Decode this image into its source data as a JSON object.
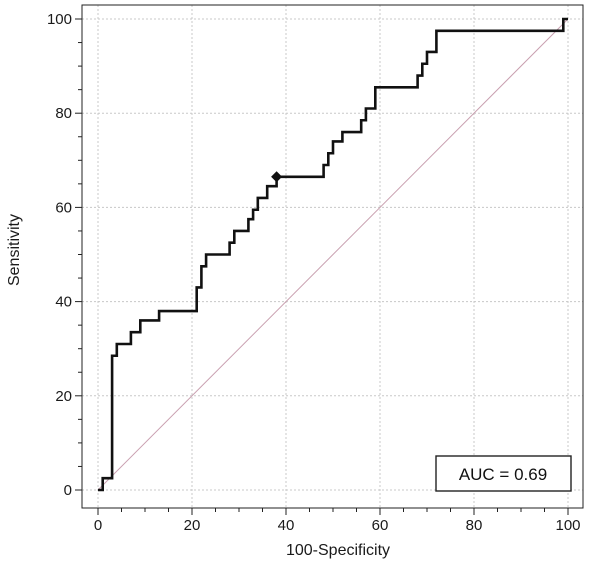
{
  "chart_data": {
    "type": "line",
    "xlabel": "100-Specificity",
    "ylabel": "Sensitivity",
    "xlim": [
      0,
      100
    ],
    "ylim": [
      0,
      100
    ],
    "x_ticks": [
      0,
      20,
      40,
      60,
      80,
      100
    ],
    "y_ticks": [
      0,
      20,
      40,
      60,
      80,
      100
    ],
    "grid": true,
    "annotation": {
      "text": "AUC = 0.69",
      "placement": "bottom-right"
    },
    "series": [
      {
        "style": "step",
        "color": "#111111",
        "x": [
          0,
          1,
          1,
          3,
          3,
          4,
          4,
          7,
          7,
          9,
          9,
          13,
          13,
          21,
          21,
          22,
          22,
          23,
          23,
          28,
          28,
          29,
          29,
          32,
          32,
          33,
          33,
          34,
          34,
          36,
          36,
          38,
          38,
          48,
          48,
          49,
          49,
          50,
          50,
          52,
          52,
          56,
          56,
          57,
          57,
          59,
          59,
          68,
          68,
          69,
          69,
          70,
          70,
          72,
          72,
          99,
          99,
          100
        ],
        "y": [
          0,
          0,
          2.5,
          2.5,
          28.5,
          28.5,
          31,
          31,
          33.5,
          33.5,
          36,
          36,
          38,
          38,
          43,
          43,
          47.5,
          47.5,
          50,
          50,
          52.5,
          52.5,
          55,
          55,
          57.5,
          57.5,
          59.5,
          59.5,
          62,
          62,
          64.5,
          64.5,
          66.5,
          66.5,
          69,
          69,
          71.5,
          71.5,
          74,
          74,
          76,
          76,
          78.5,
          78.5,
          81,
          81,
          85.5,
          85.5,
          88,
          88,
          90.5,
          90.5,
          93,
          93,
          97.5,
          97.5,
          100,
          100
        ]
      },
      {
        "style": "diagonal",
        "color": "#c9a0b0",
        "x": [
          0,
          100
        ],
        "y": [
          0,
          100
        ]
      }
    ],
    "marker": {
      "shape": "diamond",
      "x": 38,
      "y": 66.5
    }
  }
}
